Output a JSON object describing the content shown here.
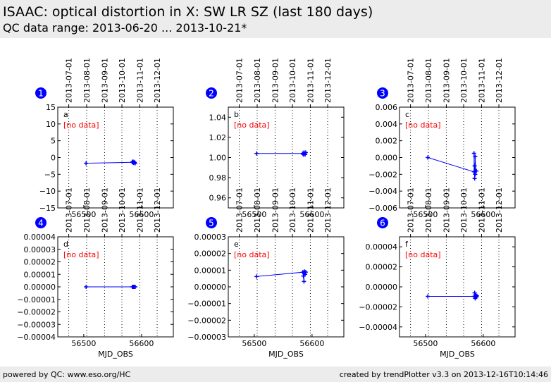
{
  "header": {
    "title": "ISAAC: optical distortion in X: SW LR SZ (last 180 days)",
    "subtitle": "QC data range: 2013-06-20 ... 2013-10-21*"
  },
  "footer": {
    "left": "powered by QC: www.eso.org/HC",
    "right": "created by trendPlotter v3.3 on 2013-12-16T10:14:46"
  },
  "colors": {
    "line": "#0000ff",
    "no_data": "#ff0000",
    "badge": "#0000ff",
    "header_bg": "#ececec"
  },
  "date_ticks": {
    "labels": [
      "2013-07-01",
      "2013-08-01",
      "2013-09-01",
      "2013-10-01",
      "2013-11-01",
      "2013-12-01"
    ],
    "mjd": [
      56474,
      56505,
      56536,
      56566,
      56597,
      56627
    ]
  },
  "chart_data": [
    {
      "type": "line",
      "badge": "1",
      "panel_label": "a",
      "note": "[no data]",
      "xlabel": "",
      "xlim": [
        56455,
        56655
      ],
      "xticks": [
        56500,
        56600
      ],
      "ylim": [
        -15,
        15
      ],
      "yticks": [
        "15",
        "10",
        "5",
        "0",
        "−5",
        "−10",
        "−15"
      ],
      "ytick_values": [
        15,
        10,
        5,
        0,
        -5,
        -10,
        -15
      ],
      "series": [
        {
          "x": [
            56504,
            56584,
            56585,
            56586,
            56587,
            56588,
            56589
          ],
          "y": [
            -1.7,
            -1.4,
            -1.2,
            -1.6,
            -1.3,
            -1.5,
            -1.7
          ]
        }
      ]
    },
    {
      "type": "line",
      "badge": "2",
      "panel_label": "b",
      "note": "[no data]",
      "xlabel": "",
      "xlim": [
        56455,
        56655
      ],
      "xticks": [
        56500,
        56600
      ],
      "ylim": [
        0.95,
        1.05
      ],
      "yticks": [
        "1.04",
        "1.02",
        "1.00",
        "0.98",
        "0.96"
      ],
      "ytick_values": [
        1.04,
        1.02,
        1.0,
        0.98,
        0.96
      ],
      "series": [
        {
          "x": [
            56504,
            56584,
            56585,
            56586,
            56587,
            56588,
            56589
          ],
          "y": [
            1.004,
            1.004,
            1.003,
            1.005,
            1.004,
            1.003,
            1.005
          ]
        }
      ]
    },
    {
      "type": "line",
      "badge": "3",
      "panel_label": "c",
      "note": "[no data]",
      "xlabel": "",
      "xlim": [
        56455,
        56655
      ],
      "xticks": [
        56500,
        56600
      ],
      "ylim": [
        -0.006,
        0.006
      ],
      "yticks": [
        "0.006",
        "0.004",
        "0.002",
        "0.000",
        "−0.002",
        "−0.004",
        "−0.006"
      ],
      "ytick_values": [
        0.006,
        0.004,
        0.002,
        0,
        -0.002,
        -0.004,
        -0.006
      ],
      "series": [
        {
          "x": [
            56504,
            56584,
            56584,
            56585,
            56585,
            56586,
            56586,
            56587,
            56588
          ],
          "y": [
            0.0,
            -0.0017,
            0.0005,
            -0.0025,
            -0.001,
            -0.002,
            0.0001,
            -0.0016,
            -0.0016
          ]
        }
      ]
    },
    {
      "type": "line",
      "badge": "4",
      "panel_label": "d",
      "note": "[no data]",
      "xlabel": "MJD_OBS",
      "xlim": [
        56455,
        56655
      ],
      "xticks": [
        56500,
        56600
      ],
      "ylim": [
        -4e-05,
        4e-05
      ],
      "yticks": [
        "0.00004",
        "0.00003",
        "0.00002",
        "0.00001",
        "0.00000",
        "−0.00001",
        "−0.00002",
        "−0.00003",
        "−0.00004"
      ],
      "ytick_values": [
        4e-05,
        3e-05,
        2e-05,
        1e-05,
        0,
        -1e-05,
        -2e-05,
        -3e-05,
        -4e-05
      ],
      "series": [
        {
          "x": [
            56504,
            56584,
            56585,
            56586,
            56587,
            56588,
            56589
          ],
          "y": [
            0,
            0,
            0,
            0,
            0,
            0,
            0
          ]
        }
      ]
    },
    {
      "type": "line",
      "badge": "5",
      "panel_label": "e",
      "note": "[no data]",
      "xlabel": "MJD_OBS",
      "xlim": [
        56455,
        56655
      ],
      "xticks": [
        56500,
        56600
      ],
      "ylim": [
        -3e-05,
        3e-05
      ],
      "yticks": [
        "0.00003",
        "0.00002",
        "0.00001",
        "0.00000",
        "−0.00001",
        "−0.00002",
        "−0.00003"
      ],
      "ytick_values": [
        3e-05,
        2e-05,
        1e-05,
        0,
        -1e-05,
        -2e-05,
        -3e-05
      ],
      "series": [
        {
          "x": [
            56504,
            56584,
            56585,
            56586,
            56586,
            56587,
            56588,
            56589
          ],
          "y": [
            6.2e-06,
            8.8e-06,
            6.5e-06,
            3.2e-06,
            8.5e-06,
            9.2e-06,
            7.5e-06,
            8.8e-06
          ]
        }
      ]
    },
    {
      "type": "line",
      "badge": "6",
      "panel_label": "f",
      "note": "[no data]",
      "xlabel": "MJD_OBS",
      "xlim": [
        56455,
        56655
      ],
      "xticks": [
        56500,
        56600
      ],
      "ylim": [
        -5e-05,
        5e-05
      ],
      "yticks": [
        "0.00004",
        "0.00002",
        "0.00000",
        "−0.00002",
        "−0.00004"
      ],
      "ytick_values": [
        4e-05,
        2e-05,
        0,
        -2e-05,
        -4e-05
      ],
      "series": [
        {
          "x": [
            56504,
            56584,
            56585,
            56586,
            56587,
            56588,
            56589
          ],
          "y": [
            -9.5e-06,
            -9.5e-06,
            -6e-06,
            -1.15e-05,
            -8.5e-06,
            -1e-05,
            -9e-06
          ]
        }
      ]
    }
  ]
}
